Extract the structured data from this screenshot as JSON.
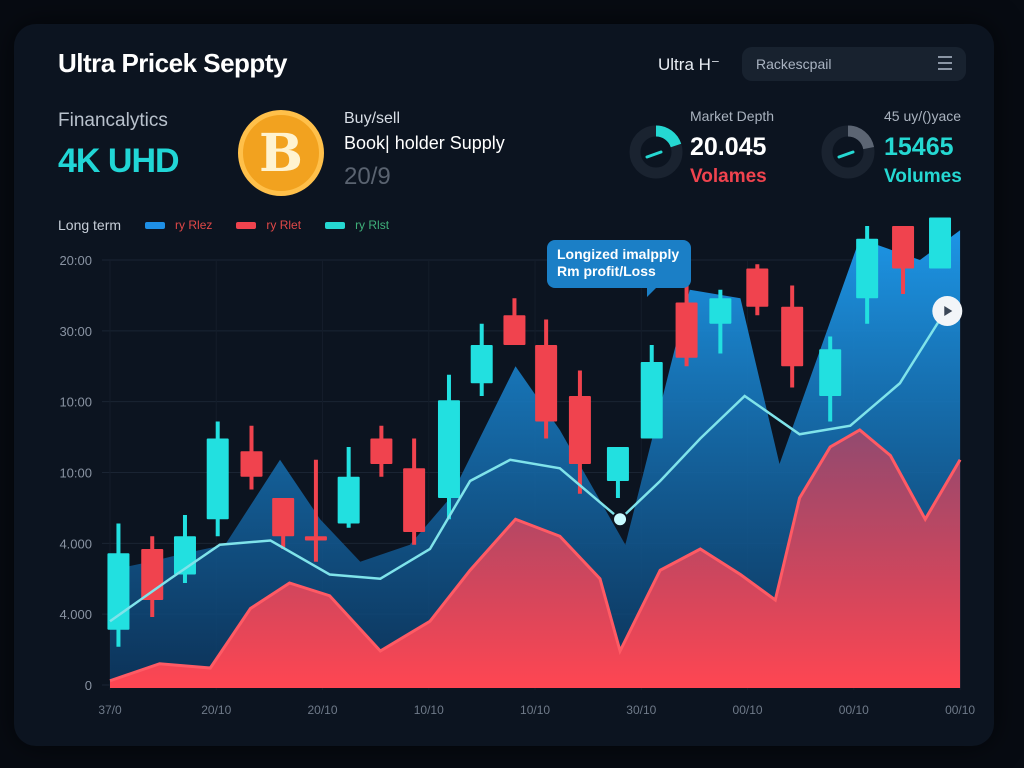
{
  "header": {
    "title": "Ultra Pricek Seppty",
    "right_label": "Ultra H⁻",
    "search_placeholder": "Rackescpail",
    "menu_icon": "hamburger-menu-icon"
  },
  "summary": {
    "brand_label": "Financalytics",
    "brand_value": "4K UHD",
    "coin_icon": "bitcoin-icon",
    "coin_glyph": "B",
    "buy_label": "Buy/sell",
    "book_label": "Book| holder Supply",
    "book_value": "20/9"
  },
  "stats": [
    {
      "label": "Market Depth",
      "value": "20.045",
      "unit": "Volames",
      "gauge_fraction": 0.2,
      "gauge_color": "#25d8d2",
      "unit_color": "#f0434e"
    },
    {
      "label": "45 uy/()yace",
      "value": "15465",
      "unit": "Volumes",
      "gauge_fraction": 0.22,
      "gauge_color": "#5c6573",
      "unit_color": "#25d8d2"
    }
  ],
  "legend": {
    "title": "Long term",
    "items": [
      {
        "label": "ry Rlez",
        "color": "#1e8fe6"
      },
      {
        "label": "ry Rlet",
        "color": "#f0434e"
      },
      {
        "label": "ry Rlst",
        "color": "#25d8d2"
      }
    ]
  },
  "tooltip": {
    "line1": "Longized imalpply",
    "line2": "Rm profit/Loss"
  },
  "chart_data": {
    "type": "candlestick",
    "colors": {
      "up": "#22e0e0",
      "down": "#f0434e",
      "area_blue": "#1e8fe6",
      "area_red": "#f0434e",
      "line": "#7fe3ea"
    },
    "y_tick_labels": [
      "0",
      "4.000",
      "4.000",
      "10:00",
      "10:00",
      "30:00",
      "20:00"
    ],
    "x_tick_labels": [
      "37/0",
      "20/10",
      "20/10",
      "10/10",
      "10/10",
      "30/10",
      "00/10",
      "00/10",
      "00/10"
    ],
    "ylim": [
      0,
      100
    ],
    "grid": true,
    "candles": [
      {
        "x": 0.08,
        "o": 13,
        "h": 38,
        "l": 9,
        "c": 31
      },
      {
        "x": 0.4,
        "o": 32,
        "h": 35,
        "l": 16,
        "c": 20
      },
      {
        "x": 0.71,
        "o": 26,
        "h": 40,
        "l": 24,
        "c": 35
      },
      {
        "x": 1.02,
        "o": 39,
        "h": 62,
        "l": 35,
        "c": 58
      },
      {
        "x": 1.34,
        "o": 55,
        "h": 61,
        "l": 46,
        "c": 49
      },
      {
        "x": 1.64,
        "o": 44,
        "h": 44,
        "l": 32,
        "c": 35
      },
      {
        "x": 1.95,
        "o": 35,
        "h": 53,
        "l": 29,
        "c": 34
      },
      {
        "x": 2.26,
        "o": 38,
        "h": 56,
        "l": 37,
        "c": 49
      },
      {
        "x": 2.57,
        "o": 58,
        "h": 61,
        "l": 49,
        "c": 52
      },
      {
        "x": 2.88,
        "o": 51,
        "h": 58,
        "l": 33,
        "c": 36
      },
      {
        "x": 3.21,
        "o": 44,
        "h": 73,
        "l": 39,
        "c": 67
      },
      {
        "x": 3.52,
        "o": 71,
        "h": 85,
        "l": 68,
        "c": 80
      },
      {
        "x": 3.83,
        "o": 87,
        "h": 91,
        "l": 80,
        "c": 80
      },
      {
        "x": 4.13,
        "o": 80,
        "h": 86,
        "l": 58,
        "c": 62
      },
      {
        "x": 4.45,
        "o": 68,
        "h": 74,
        "l": 45,
        "c": 52
      },
      {
        "x": 4.81,
        "o": 48,
        "h": 56,
        "l": 44,
        "c": 56
      },
      {
        "x": 5.13,
        "o": 58,
        "h": 80,
        "l": 58,
        "c": 76
      },
      {
        "x": 5.46,
        "o": 90,
        "h": 95,
        "l": 75,
        "c": 77
      },
      {
        "x": 5.78,
        "o": 85,
        "h": 93,
        "l": 78,
        "c": 91
      },
      {
        "x": 6.13,
        "o": 98,
        "h": 99,
        "l": 87,
        "c": 89
      },
      {
        "x": 6.46,
        "o": 89,
        "h": 94,
        "l": 70,
        "c": 75
      },
      {
        "x": 6.82,
        "o": 68,
        "h": 82,
        "l": 62,
        "c": 79
      },
      {
        "x": 7.17,
        "o": 91,
        "h": 108,
        "l": 85,
        "c": 105
      },
      {
        "x": 7.51,
        "o": 108,
        "h": 108,
        "l": 92,
        "c": 98
      },
      {
        "x": 7.86,
        "o": 98,
        "h": 110,
        "l": 98,
        "c": 110
      }
    ],
    "area_blue": [
      [
        0,
        27
      ],
      [
        0.38,
        29
      ],
      [
        0.71,
        31
      ],
      [
        1.09,
        33
      ],
      [
        1.61,
        53
      ],
      [
        1.99,
        39
      ],
      [
        2.37,
        29
      ],
      [
        2.84,
        33
      ],
      [
        3.22,
        44
      ],
      [
        3.84,
        75
      ],
      [
        4.26,
        60
      ],
      [
        4.88,
        33
      ],
      [
        5.49,
        93
      ],
      [
        5.97,
        91
      ],
      [
        6.34,
        52
      ],
      [
        7.1,
        105
      ],
      [
        7.67,
        100
      ],
      [
        8.05,
        107
      ]
    ],
    "area_red": [
      [
        0,
        1
      ],
      [
        0.47,
        5
      ],
      [
        0.95,
        4
      ],
      [
        1.33,
        18
      ],
      [
        1.7,
        24
      ],
      [
        2.08,
        21
      ],
      [
        2.56,
        8
      ],
      [
        3.03,
        15
      ],
      [
        3.41,
        27
      ],
      [
        3.84,
        39
      ],
      [
        4.26,
        35
      ],
      [
        4.64,
        25
      ],
      [
        4.83,
        8
      ],
      [
        5.21,
        27
      ],
      [
        5.59,
        32
      ],
      [
        5.97,
        26
      ],
      [
        6.3,
        20
      ],
      [
        6.53,
        44
      ],
      [
        6.82,
        56
      ],
      [
        7.1,
        60
      ],
      [
        7.39,
        54
      ],
      [
        7.72,
        39
      ],
      [
        8.05,
        53
      ]
    ],
    "line": [
      [
        0,
        15
      ],
      [
        0.57,
        25
      ],
      [
        1.04,
        33
      ],
      [
        1.52,
        34
      ],
      [
        2.08,
        26
      ],
      [
        2.56,
        25
      ],
      [
        3.03,
        32
      ],
      [
        3.41,
        48
      ],
      [
        3.79,
        53
      ],
      [
        4.26,
        51
      ],
      [
        4.83,
        39
      ],
      [
        5.21,
        48
      ],
      [
        5.59,
        58
      ],
      [
        6.01,
        68
      ],
      [
        6.53,
        59
      ],
      [
        7.01,
        61
      ],
      [
        7.48,
        71
      ],
      [
        7.91,
        88
      ]
    ],
    "marker": [
      4.83,
      39
    ]
  }
}
